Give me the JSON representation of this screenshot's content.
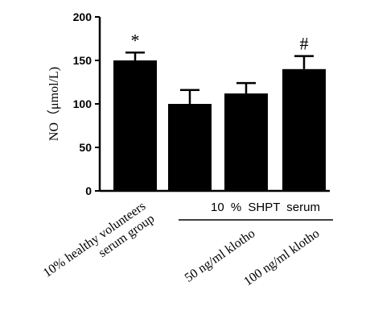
{
  "chart_data": {
    "type": "bar",
    "title": "",
    "ylabel": "NO（μmol/L)",
    "xlabel": "",
    "ylim": [
      0,
      200
    ],
    "yticks": [
      0,
      50,
      100,
      150,
      200
    ],
    "categories": [
      "10% healthy volunteers serum group",
      "",
      "",
      "50 ng/ml klotho",
      "100 ng/ml klotho"
    ],
    "category_label_lines": [
      [
        "10% healthy volunteers",
        "serum group"
      ],
      [],
      [],
      [
        "50 ng/ml klotho"
      ],
      [
        "100 ng/ml klotho"
      ]
    ],
    "values": [
      150,
      100,
      112,
      null,
      140
    ],
    "errors": [
      9,
      16,
      12,
      null,
      15
    ],
    "bar_values": [
      150,
      100,
      112,
      140
    ],
    "bar_errors": [
      9,
      16,
      12,
      15
    ],
    "significance": [
      "*",
      "",
      "",
      "#"
    ],
    "group_label": "10 % SHPT serum",
    "colors": {
      "bar": "#000000",
      "axis": "#000000"
    }
  }
}
